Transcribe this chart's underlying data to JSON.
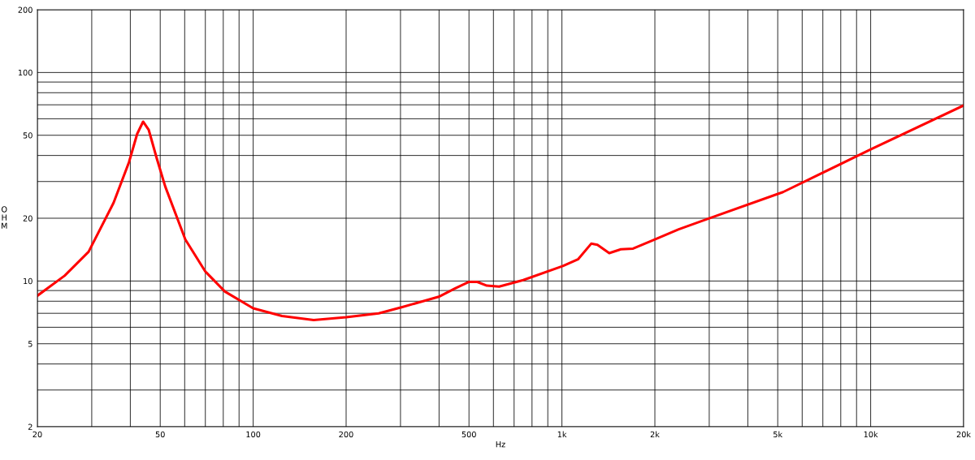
{
  "chart_data": {
    "type": "line",
    "xlabel": "Hz",
    "ylabel": "OHM",
    "log": "xy",
    "grid": true,
    "legend": false,
    "marker": "none",
    "line_style": "solid",
    "xlim": [
      20,
      20000
    ],
    "ylim": [
      2,
      200
    ],
    "xticks": [
      20,
      {
        "value": 30,
        "label": null
      },
      {
        "value": 40,
        "label": null
      },
      50,
      {
        "value": 60,
        "label": null
      },
      {
        "value": 70,
        "label": null
      },
      {
        "value": 80,
        "label": null
      },
      {
        "value": 90,
        "label": null
      },
      100,
      200,
      {
        "value": 300,
        "label": null
      },
      {
        "value": 400,
        "label": null
      },
      500,
      {
        "value": 600,
        "label": null
      },
      {
        "value": 700,
        "label": null
      },
      {
        "value": 800,
        "label": null
      },
      {
        "value": 900,
        "label": null
      },
      {
        "value": 1000,
        "label": "1k"
      },
      {
        "value": 2000,
        "label": "2k"
      },
      {
        "value": 3000,
        "label": null
      },
      {
        "value": 4000,
        "label": null
      },
      {
        "value": 5000,
        "label": "5k"
      },
      {
        "value": 6000,
        "label": null
      },
      {
        "value": 7000,
        "label": null
      },
      {
        "value": 8000,
        "label": null
      },
      {
        "value": 9000,
        "label": null
      },
      {
        "value": 10000,
        "label": "10k"
      },
      {
        "value": 20000,
        "label": "20k"
      }
    ],
    "yticks": [
      2,
      {
        "value": 3,
        "label": null
      },
      {
        "value": 4,
        "label": null
      },
      5,
      {
        "value": 6,
        "label": null
      },
      {
        "value": 7,
        "label": null
      },
      {
        "value": 8,
        "label": null
      },
      {
        "value": 9,
        "label": null
      },
      10,
      20,
      {
        "value": 30,
        "label": null
      },
      {
        "value": 40,
        "label": null
      },
      50,
      {
        "value": 60,
        "label": null
      },
      {
        "value": 70,
        "label": null
      },
      {
        "value": 80,
        "label": null
      },
      {
        "value": 90,
        "label": null
      },
      100,
      200
    ],
    "x": [
      20,
      24.5,
      29.3,
      35.3,
      39.6,
      42.1,
      44.0,
      45.9,
      48.7,
      51.9,
      60.3,
      70,
      81,
      100,
      124,
      157,
      200,
      255,
      304,
      399,
      450,
      500,
      532,
      571,
      626,
      749,
      1007,
      1127,
      1244,
      1303,
      1423,
      1553,
      1700,
      1993,
      2390,
      2949,
      5200,
      10000,
      20000
    ],
    "series": [
      {
        "color": "#ff0000",
        "values": [
          8.5,
          10.6,
          13.8,
          23.7,
          37.1,
          50.8,
          58.1,
          53,
          38.8,
          28.4,
          15.8,
          11.1,
          8.9,
          7.4,
          6.8,
          6.5,
          6.7,
          7.0,
          7.5,
          8.4,
          9.2,
          9.9,
          9.9,
          9.5,
          9.4,
          10.1,
          11.8,
          12.7,
          15.1,
          14.9,
          13.6,
          14.2,
          14.3,
          15.8,
          17.7,
          19.8,
          26.7,
          42.8,
          69.5
        ]
      }
    ]
  }
}
